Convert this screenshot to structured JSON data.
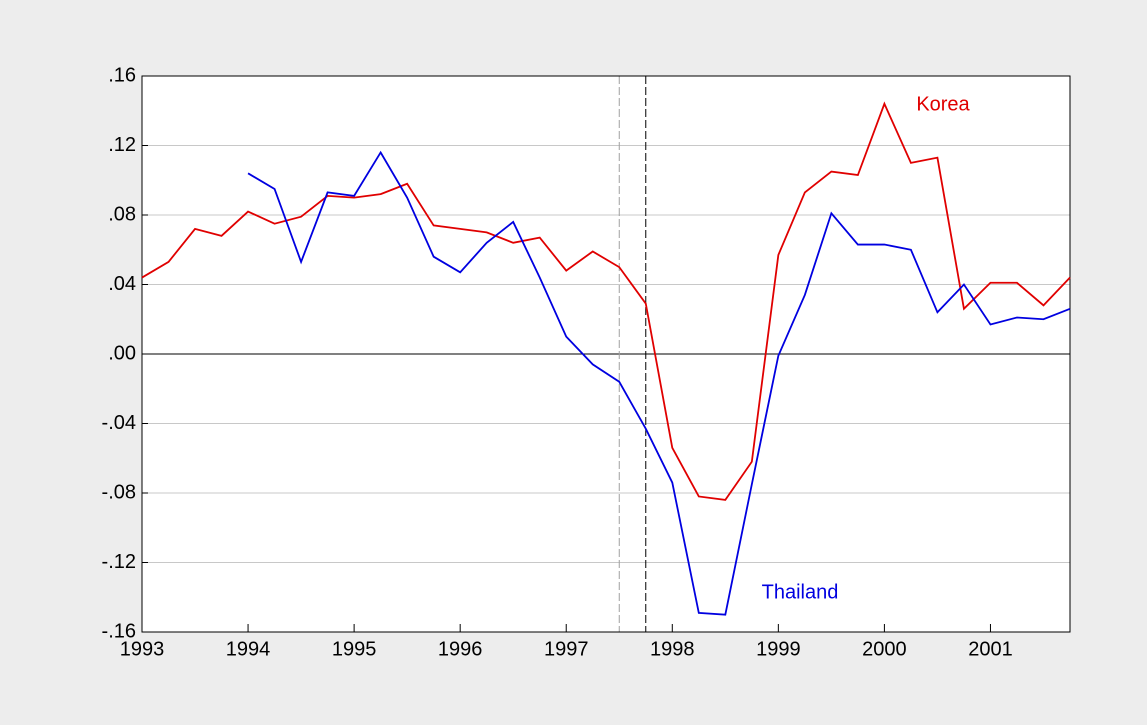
{
  "chart_data": {
    "type": "line",
    "x": [
      1993,
      1993.25,
      1993.5,
      1993.75,
      1994,
      1994.25,
      1994.5,
      1994.75,
      1995,
      1995.25,
      1995.5,
      1995.75,
      1996,
      1996.25,
      1996.5,
      1996.75,
      1997,
      1997.25,
      1997.5,
      1997.75,
      1998,
      1998.25,
      1998.5,
      1998.75,
      1999,
      1999.25,
      1999.5,
      1999.75,
      2000,
      2000.25,
      2000.5,
      2000.75,
      2001,
      2001.25,
      2001.5,
      2001.75
    ],
    "series": [
      {
        "name": "Korea",
        "color": "#e00000",
        "values": [
          0.044,
          0.053,
          0.072,
          0.068,
          0.082,
          0.075,
          0.079,
          0.091,
          0.09,
          0.092,
          0.098,
          0.074,
          0.072,
          0.07,
          0.064,
          0.067,
          0.048,
          0.059,
          0.05,
          0.029,
          -0.054,
          -0.082,
          -0.084,
          -0.062,
          0.057,
          0.093,
          0.105,
          0.103,
          0.144,
          0.11,
          0.113,
          0.026,
          0.041,
          0.041,
          0.028,
          0.044
        ]
      },
      {
        "name": "Thailand",
        "color": "#0000e0",
        "values": [
          null,
          null,
          null,
          null,
          0.104,
          0.095,
          0.053,
          0.093,
          0.091,
          0.116,
          0.09,
          0.056,
          0.047,
          0.064,
          0.076,
          0.044,
          0.01,
          -0.006,
          -0.016,
          -0.043,
          -0.074,
          -0.149,
          -0.15,
          -0.075,
          -0.001,
          0.034,
          0.081,
          0.063,
          0.063,
          0.06,
          0.024,
          0.04,
          0.017,
          0.021,
          0.02,
          0.026
        ]
      }
    ],
    "xlim": [
      1993,
      2001.75
    ],
    "xticks": [
      1993,
      1994,
      1995,
      1996,
      1997,
      1998,
      1999,
      2000,
      2001
    ],
    "ylim": [
      -0.16,
      0.16
    ],
    "yticks": [
      {
        "value": -0.16,
        "label": "-.16"
      },
      {
        "value": -0.12,
        "label": "-.12"
      },
      {
        "value": -0.08,
        "label": "-.08"
      },
      {
        "value": -0.04,
        "label": "-.04"
      },
      {
        "value": 0,
        "label": ".00"
      },
      {
        "value": 0.04,
        "label": ".04"
      },
      {
        "value": 0.08,
        "label": ".08"
      },
      {
        "value": 0.12,
        "label": ".12"
      },
      {
        "value": 0.16,
        "label": ".16"
      }
    ],
    "grid": true,
    "vlines": [
      {
        "x": 1997.5,
        "color": "#a0a0a0"
      },
      {
        "x": 1997.75,
        "color": "#000000"
      }
    ]
  }
}
